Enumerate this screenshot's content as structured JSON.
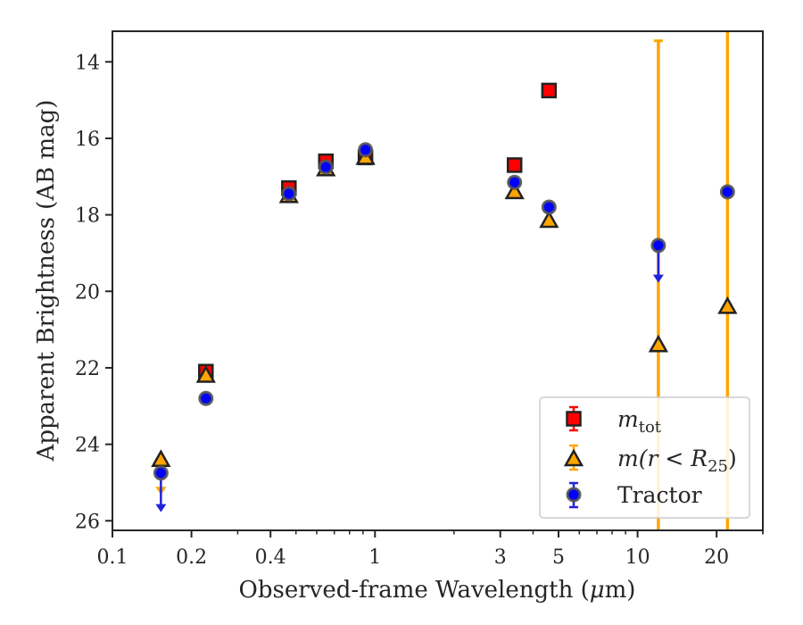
{
  "chart_data": {
    "type": "scatter",
    "x_scale": "log",
    "y_inverted": true,
    "xlabel": "Observed-frame Wavelength (μm)",
    "xlabel_pre": "Observed-frame Wavelength (",
    "xlabel_mu": "μ",
    "xlabel_post": "m)",
    "ylabel": "Apparent Brightness (AB mag)",
    "xlim": [
      0.1,
      30
    ],
    "ylim": [
      26.25,
      13.2
    ],
    "x_ticks": [
      0.1,
      0.2,
      0.4,
      1,
      3,
      5,
      10,
      20
    ],
    "x_tick_labels": [
      "0.1",
      "0.2",
      "0.4",
      "1",
      "3",
      "5",
      "10",
      "20"
    ],
    "y_ticks": [
      14,
      16,
      18,
      20,
      22,
      24,
      26
    ],
    "y_tick_labels": [
      "14",
      "16",
      "18",
      "20",
      "22",
      "24",
      "26"
    ],
    "grid": false,
    "legend_position": "lower-right",
    "colors": {
      "mtot": "#ff0000",
      "mr25": "#ffa500",
      "mr25_err": "#ffa500",
      "tractor": "#0000ff",
      "tractor_edge": "#555555",
      "tractor_err": "#2222dd",
      "edge": "#222222",
      "axes": "#262626"
    },
    "series": [
      {
        "id": "mtot",
        "legend_main": "m",
        "legend_sub": "tot",
        "marker": "square",
        "points": [
          {
            "x": 0.227,
            "y": 22.1
          },
          {
            "x": 0.47,
            "y": 17.3
          },
          {
            "x": 0.65,
            "y": 16.6
          },
          {
            "x": 0.92,
            "y": 16.5
          },
          {
            "x": 3.4,
            "y": 16.7
          },
          {
            "x": 4.6,
            "y": 14.75
          }
        ]
      },
      {
        "id": "mr25",
        "legend_pre": "m(",
        "legend_r": "r",
        "legend_lt": " < ",
        "legend_R": "R",
        "legend_sub": "25",
        "legend_post": ")",
        "marker": "triangle",
        "points": [
          {
            "x": 0.153,
            "y": 24.4
          },
          {
            "x": 0.227,
            "y": 22.2
          },
          {
            "x": 0.47,
            "y": 17.5
          },
          {
            "x": 0.65,
            "y": 16.8
          },
          {
            "x": 0.92,
            "y": 16.5
          },
          {
            "x": 3.4,
            "y": 17.4
          },
          {
            "x": 4.6,
            "y": 18.15
          },
          {
            "x": 12.0,
            "y": 21.4
          },
          {
            "x": 22.0,
            "y": 20.4
          }
        ],
        "error_bars": [
          {
            "x": 12.0,
            "low": 13.45,
            "high": 26.25
          },
          {
            "x": 22.0,
            "low": 13.2,
            "high": 26.25
          }
        ],
        "upper_limits": [
          {
            "x": 0.153,
            "y": 24.4,
            "arrow_to": 25.3
          }
        ]
      },
      {
        "id": "tractor",
        "legend": "Tractor",
        "marker": "circle",
        "points": [
          {
            "x": 0.153,
            "y": 24.75
          },
          {
            "x": 0.227,
            "y": 22.8
          },
          {
            "x": 0.47,
            "y": 17.45
          },
          {
            "x": 0.65,
            "y": 16.75
          },
          {
            "x": 0.92,
            "y": 16.3
          },
          {
            "x": 3.4,
            "y": 17.15
          },
          {
            "x": 4.6,
            "y": 17.8
          },
          {
            "x": 12.0,
            "y": 18.8
          },
          {
            "x": 22.0,
            "y": 17.4
          }
        ],
        "upper_limits": [
          {
            "x": 0.153,
            "y": 24.75,
            "arrow_to": 25.75
          },
          {
            "x": 12.0,
            "y": 18.8,
            "arrow_to": 19.75
          }
        ]
      }
    ]
  }
}
